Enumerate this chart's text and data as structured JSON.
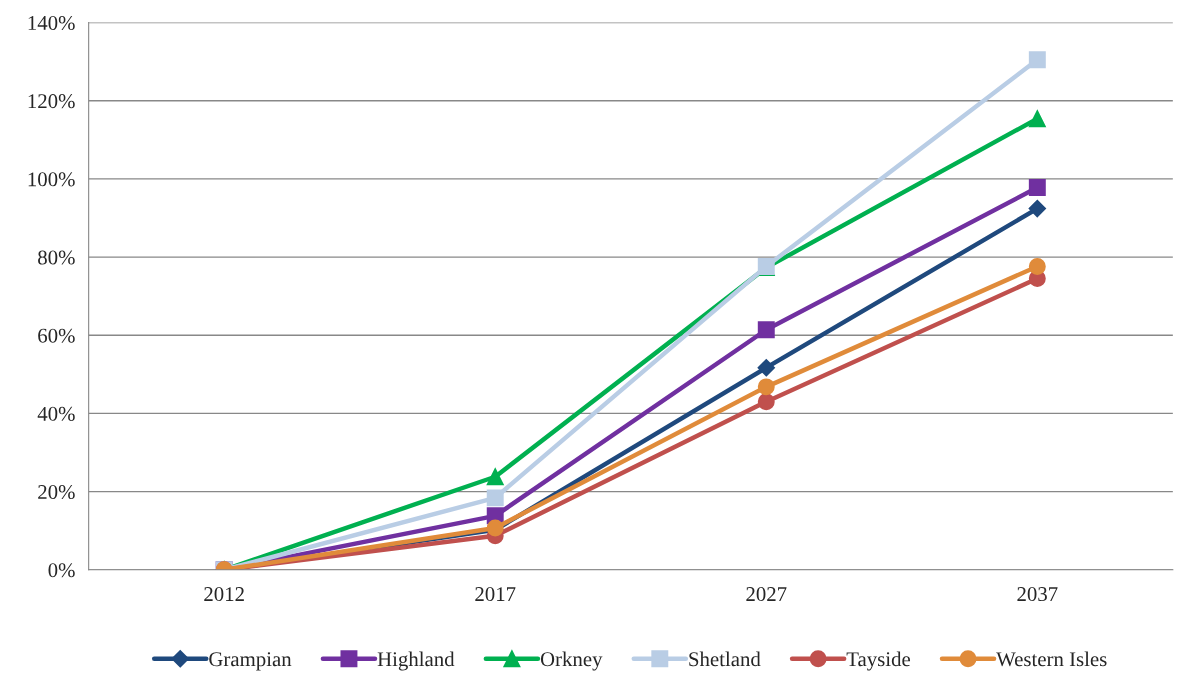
{
  "chart_data": {
    "type": "line",
    "categories": [
      "2012",
      "2017",
      "2027",
      "2037"
    ],
    "series": [
      {
        "name": "Grampian",
        "color": "#1f497d",
        "marker": "diamond",
        "values": [
          0,
          10.2,
          51.7,
          92.4
        ]
      },
      {
        "name": "Highland",
        "color": "#7030a0",
        "marker": "square",
        "values": [
          0,
          13.8,
          61.4,
          97.8
        ]
      },
      {
        "name": "Orkney",
        "color": "#00b050",
        "marker": "triangle",
        "values": [
          0,
          23.8,
          77.3,
          115.4
        ]
      },
      {
        "name": "Shetland",
        "color": "#b9cde5",
        "marker": "square",
        "values": [
          0,
          18.4,
          77.6,
          130.5
        ]
      },
      {
        "name": "Tayside",
        "color": "#c0504d",
        "marker": "circle",
        "values": [
          0,
          8.7,
          43,
          74.5
        ]
      },
      {
        "name": "Western Isles",
        "color": "#e08b3a",
        "marker": "circle",
        "values": [
          0,
          10.7,
          46.8,
          77.6
        ]
      }
    ],
    "ylim": [
      0,
      140
    ],
    "yticks": [
      {
        "value": 0,
        "label": "0%"
      },
      {
        "value": 20,
        "label": "20%"
      },
      {
        "value": 40,
        "label": "40%"
      },
      {
        "value": 60,
        "label": "60%"
      },
      {
        "value": 80,
        "label": "80%"
      },
      {
        "value": 100,
        "label": "100%"
      },
      {
        "value": 120,
        "label": "120%"
      },
      {
        "value": 140,
        "label": "140%"
      }
    ],
    "grid": "y",
    "legend": "bottom"
  }
}
